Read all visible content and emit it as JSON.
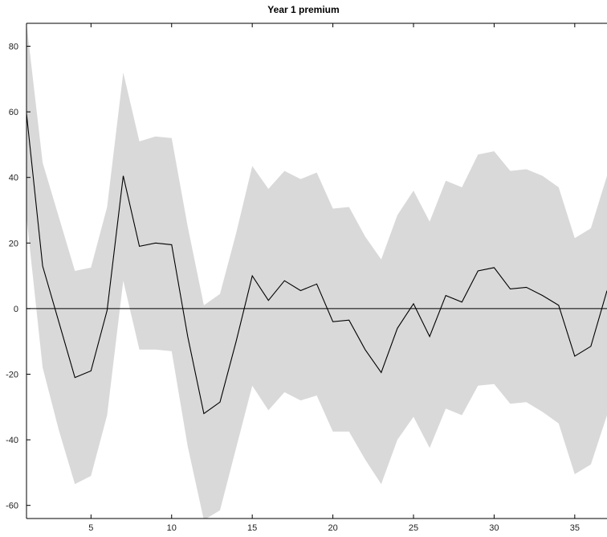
{
  "chart_data": {
    "type": "line",
    "title": "Year 1 premium",
    "xlabel": "",
    "ylabel": "",
    "xlim": [
      1,
      37
    ],
    "ylim": [
      -64,
      87
    ],
    "grid": false,
    "x_ticks": [
      5,
      10,
      15,
      20,
      25,
      30,
      35
    ],
    "y_ticks": [
      -60,
      -40,
      -20,
      0,
      20,
      40,
      60,
      80
    ],
    "x": [
      1,
      2,
      3,
      4,
      5,
      6,
      7,
      8,
      9,
      10,
      11,
      12,
      13,
      14,
      15,
      16,
      17,
      18,
      19,
      20,
      21,
      22,
      23,
      24,
      25,
      26,
      27,
      28,
      29,
      30,
      31,
      32,
      33,
      34,
      35,
      36,
      37
    ],
    "series": [
      {
        "values": [
          59.5,
          13.0,
          -4.0,
          -21.0,
          -19.0,
          -0.5,
          40.5,
          19.0,
          20.0,
          19.5,
          -8.5,
          -32.0,
          -28.5,
          -10.0,
          10.0,
          2.5,
          8.5,
          5.5,
          7.5,
          -4.0,
          -3.5,
          -12.5,
          -19.5,
          -6.0,
          1.5,
          -8.5,
          4.0,
          2.0,
          11.5,
          12.5,
          6.0,
          6.5,
          4.0,
          1.0,
          -14.5,
          -11.5,
          5.5
        ],
        "color": "#000000"
      }
    ],
    "band": {
      "upper": [
        87.0,
        44.5,
        28.0,
        11.5,
        12.5,
        31.0,
        72.0,
        51.0,
        52.5,
        52.0,
        25.0,
        1.0,
        4.5,
        23.0,
        43.5,
        36.5,
        42.0,
        39.5,
        41.5,
        30.5,
        31.0,
        22.0,
        15.0,
        28.5,
        36.0,
        26.5,
        39.0,
        37.0,
        47.0,
        48.0,
        42.0,
        42.5,
        40.5,
        37.0,
        21.5,
        24.5,
        40.5
      ],
      "lower": [
        28.0,
        -18.0,
        -37.0,
        -53.5,
        -51.0,
        -32.5,
        8.5,
        -12.5,
        -12.5,
        -13.0,
        -42.0,
        -64.5,
        -61.5,
        -42.5,
        -23.5,
        -31.0,
        -25.5,
        -28.0,
        -26.5,
        -37.5,
        -37.5,
        -46.0,
        -53.5,
        -40.0,
        -33.0,
        -42.5,
        -30.5,
        -32.5,
        -23.5,
        -23.0,
        -29.0,
        -28.5,
        -31.5,
        -35.0,
        -50.5,
        -47.5,
        -32.5
      ],
      "color": "#d9d9d9"
    },
    "zero_line": 0
  }
}
